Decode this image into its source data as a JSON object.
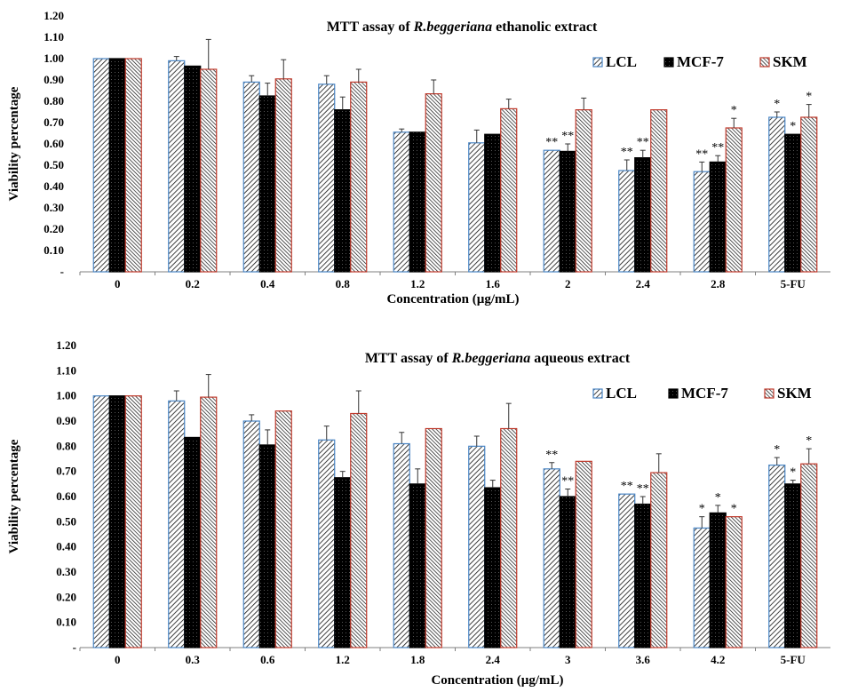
{
  "chart_data": [
    {
      "type": "bar",
      "title_prefix": "MTT assay of ",
      "title_species": "R.beggeriana",
      "title_suffix": " ethanolic extract",
      "xlabel": "Concentration (µg/mL)",
      "ylabel": "Viability percentage",
      "ylim": [
        0,
        1.2
      ],
      "yticks": [
        "-",
        "0.10",
        "0.20",
        "0.30",
        "0.40",
        "0.50",
        "0.60",
        "0.70",
        "0.80",
        "0.90",
        "1.00",
        "1.10",
        "1.20"
      ],
      "legend_position": "top-right",
      "grid": false,
      "categories": [
        "0",
        "0.2",
        "0.4",
        "0.8",
        "1.2",
        "1.6",
        "2",
        "2.4",
        "2.8",
        "5-FU"
      ],
      "series": [
        {
          "name": "LCL",
          "color": "#4a86c5",
          "pattern": "hatch-light",
          "values": [
            1.0,
            0.99,
            0.89,
            0.88,
            0.655,
            0.605,
            0.57,
            0.475,
            0.47,
            0.725
          ],
          "errors": [
            0,
            0.02,
            0.03,
            0.04,
            0.015,
            0.06,
            0.0,
            0.05,
            0.045,
            0.025
          ],
          "markers": [
            "",
            "",
            "",
            "",
            "",
            "",
            "**",
            "**",
            "**",
            "*"
          ]
        },
        {
          "name": "MCF-7",
          "color": "#000000",
          "pattern": "solid-dark",
          "values": [
            1.0,
            0.965,
            0.825,
            0.76,
            0.655,
            0.645,
            0.565,
            0.535,
            0.515,
            0.645
          ],
          "errors": [
            0,
            0.0,
            0.06,
            0.06,
            0.0,
            0.0,
            0.035,
            0.035,
            0.03,
            0.0
          ],
          "markers": [
            "",
            "",
            "",
            "",
            "",
            "",
            "**",
            "**",
            "**",
            "*"
          ]
        },
        {
          "name": "SKM",
          "color": "#c0392b",
          "pattern": "hatch-dense",
          "values": [
            1.0,
            0.95,
            0.905,
            0.89,
            0.835,
            0.765,
            0.76,
            0.76,
            0.675,
            0.725
          ],
          "errors": [
            0,
            0.14,
            0.09,
            0.06,
            0.065,
            0.045,
            0.055,
            0.0,
            0.045,
            0.06
          ],
          "markers": [
            "",
            "",
            "",
            "",
            "",
            "",
            "",
            "",
            "*",
            "*"
          ]
        }
      ]
    },
    {
      "type": "bar",
      "title_prefix": "MTT assay of ",
      "title_species": "R.beggeriana",
      "title_suffix": " aqueous extract",
      "xlabel": "Concentration (µg/mL)",
      "ylabel": "Viability percentage",
      "ylim": [
        0,
        1.2
      ],
      "yticks": [
        "-",
        "0.10",
        "0.20",
        "0.30",
        "0.40",
        "0.50",
        "0.60",
        "0.70",
        "0.80",
        "0.90",
        "1.00",
        "1.10",
        "1.20"
      ],
      "legend_position": "top-right",
      "grid": false,
      "categories": [
        "0",
        "0.3",
        "0.6",
        "1.2",
        "1.8",
        "2.4",
        "3",
        "3.6",
        "4.2",
        "5-FU"
      ],
      "series": [
        {
          "name": "LCL",
          "color": "#4a86c5",
          "pattern": "hatch-light",
          "values": [
            1.0,
            0.98,
            0.9,
            0.825,
            0.81,
            0.8,
            0.71,
            0.61,
            0.475,
            0.725
          ],
          "errors": [
            0,
            0.04,
            0.025,
            0.055,
            0.045,
            0.04,
            0.025,
            0.0,
            0.045,
            0.03
          ],
          "markers": [
            "",
            "",
            "",
            "",
            "",
            "",
            "**",
            "**",
            "*",
            "*"
          ]
        },
        {
          "name": "MCF-7",
          "color": "#000000",
          "pattern": "solid-dark",
          "values": [
            1.0,
            0.835,
            0.805,
            0.675,
            0.65,
            0.635,
            0.6,
            0.57,
            0.535,
            0.65
          ],
          "errors": [
            0,
            0.0,
            0.06,
            0.025,
            0.06,
            0.03,
            0.03,
            0.03,
            0.03,
            0.015
          ],
          "markers": [
            "",
            "",
            "",
            "",
            "",
            "",
            "**",
            "**",
            "*",
            "*"
          ]
        },
        {
          "name": "SKM",
          "color": "#c0392b",
          "pattern": "hatch-dense",
          "values": [
            1.0,
            0.995,
            0.94,
            0.93,
            0.87,
            0.87,
            0.74,
            0.695,
            0.52,
            0.73
          ],
          "errors": [
            0,
            0.09,
            0.0,
            0.09,
            0.0,
            0.1,
            0.0,
            0.075,
            0.0,
            0.06
          ],
          "markers": [
            "",
            "",
            "",
            "",
            "",
            "",
            "",
            "",
            "*",
            "*"
          ]
        }
      ]
    }
  ]
}
